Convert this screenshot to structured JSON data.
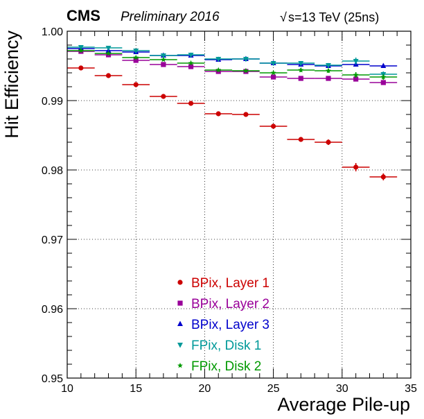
{
  "header": {
    "experiment": "CMS",
    "status": "Preliminary 2016",
    "energy": "s=13 TeV (25ns)",
    "energy_symbol": "√"
  },
  "chart_data": {
    "type": "scatter",
    "title": "",
    "xlabel": "Average Pile-up",
    "ylabel": "Hit Efficiency",
    "xlim": [
      10,
      35
    ],
    "ylim": [
      0.95,
      1.0
    ],
    "x_ticks": [
      10,
      15,
      20,
      25,
      30,
      35
    ],
    "y_ticks": [
      0.95,
      0.96,
      0.97,
      0.98,
      0.99,
      1.0
    ],
    "y_tick_labels": [
      "0.95",
      "0.96",
      "0.97",
      "0.98",
      "0.99",
      "1.00"
    ],
    "grid": true,
    "legend_position": "bottom-center",
    "x_bin_halfwidth": 1,
    "series": [
      {
        "name": "BPix, Layer 1",
        "color": "#cc0000",
        "marker": "circle",
        "x": [
          11,
          13,
          15,
          17,
          19,
          21,
          23,
          25,
          27,
          29,
          31,
          33
        ],
        "y": [
          0.9947,
          0.9936,
          0.9923,
          0.9906,
          0.9896,
          0.9881,
          0.988,
          0.9863,
          0.9844,
          0.984,
          0.9804,
          0.979
        ],
        "err": [
          0.0002,
          0.0002,
          0.0002,
          0.0002,
          0.0002,
          0.0002,
          0.0002,
          0.0003,
          0.0002,
          0.0004,
          0.0006,
          0.0005
        ]
      },
      {
        "name": "BPix, Layer 2",
        "color": "#990099",
        "marker": "square",
        "x": [
          11,
          13,
          15,
          17,
          19,
          21,
          23,
          25,
          27,
          29,
          31,
          33
        ],
        "y": [
          0.9971,
          0.9966,
          0.9958,
          0.9952,
          0.9949,
          0.9942,
          0.9942,
          0.9934,
          0.9932,
          0.9932,
          0.9931,
          0.9926
        ],
        "err": [
          0.0001,
          0.0001,
          0.0001,
          0.0001,
          0.0001,
          0.0001,
          0.0002,
          0.0002,
          0.0002,
          0.0002,
          0.0003,
          0.0003
        ]
      },
      {
        "name": "BPix, Layer 3",
        "color": "#0000cc",
        "marker": "triangle-up",
        "x": [
          11,
          13,
          15,
          17,
          19,
          21,
          23,
          25,
          27,
          29,
          31,
          33
        ],
        "y": [
          0.9975,
          0.9972,
          0.997,
          0.9965,
          0.9965,
          0.9959,
          0.996,
          0.9954,
          0.9952,
          0.995,
          0.9952,
          0.995
        ],
        "err": [
          0.0001,
          0.0001,
          0.0001,
          0.0001,
          0.0001,
          0.0001,
          0.0001,
          0.0002,
          0.0002,
          0.0002,
          0.0003,
          0.0003
        ]
      },
      {
        "name": "FPix, Disk 1",
        "color": "#009999",
        "marker": "triangle-down",
        "x": [
          11,
          13,
          15,
          17,
          19,
          21,
          23,
          25,
          27,
          29,
          31,
          33
        ],
        "y": [
          0.9977,
          0.9976,
          0.9972,
          0.9965,
          0.9966,
          0.996,
          0.996,
          0.9954,
          0.9954,
          0.9951,
          0.9957,
          0.9938
        ],
        "err": [
          0.0001,
          0.0001,
          0.0001,
          0.0001,
          0.0001,
          0.0002,
          0.0002,
          0.0002,
          0.0003,
          0.0003,
          0.0005,
          0.0004
        ]
      },
      {
        "name": "FPix, Disk 2",
        "color": "#009900",
        "marker": "star",
        "x": [
          11,
          13,
          15,
          17,
          19,
          21,
          23,
          25,
          27,
          29,
          31,
          33
        ],
        "y": [
          0.9972,
          0.9968,
          0.9962,
          0.9959,
          0.9954,
          0.9944,
          0.9943,
          0.994,
          0.9944,
          0.9943,
          0.9937,
          0.9934
        ],
        "err": [
          0.0001,
          0.0001,
          0.0001,
          0.0001,
          0.0001,
          0.0002,
          0.0002,
          0.0002,
          0.0003,
          0.0003,
          0.0004,
          0.0004
        ]
      }
    ]
  }
}
